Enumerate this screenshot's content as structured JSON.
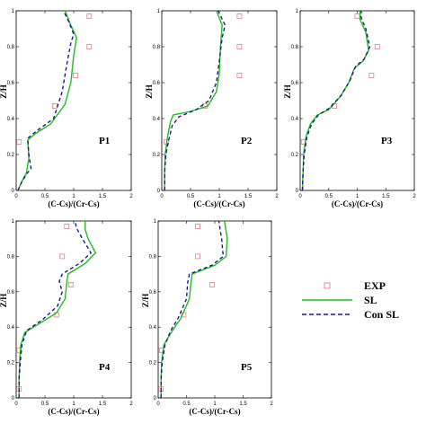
{
  "colors": {
    "exp": "#e08080",
    "sl": "#22bb22",
    "con_sl": "#1a1a8c",
    "axis": "#000000"
  },
  "chart_data": [
    {
      "type": "line",
      "title": "P1",
      "xlabel": "(C-Cs)/(Cr-Cs)",
      "ylabel": "Z/H",
      "xlim": [
        0,
        2
      ],
      "ylim": [
        0,
        1
      ],
      "xticks": [
        "0",
        "0.5",
        "1",
        "1.5",
        "2"
      ],
      "yticks": [
        "0",
        "0.2",
        "0.4",
        "0.6",
        "0.8",
        "1"
      ],
      "series": [
        {
          "name": "EXP",
          "kind": "scatter",
          "points": [
            [
              1.27,
              0.97
            ],
            [
              1.27,
              0.8
            ],
            [
              1.03,
              0.64
            ],
            [
              0.67,
              0.47
            ],
            [
              0.05,
              0.27
            ]
          ]
        },
        {
          "name": "SL",
          "kind": "line",
          "points": [
            [
              0.03,
              0
            ],
            [
              0.1,
              0.05
            ],
            [
              0.18,
              0.1
            ],
            [
              0.22,
              0.18
            ],
            [
              0.2,
              0.28
            ],
            [
              0.35,
              0.32
            ],
            [
              0.6,
              0.37
            ],
            [
              0.85,
              0.48
            ],
            [
              0.95,
              0.6
            ],
            [
              1.0,
              0.75
            ],
            [
              1.05,
              0.85
            ],
            [
              0.95,
              0.92
            ],
            [
              0.85,
              1.0
            ]
          ]
        },
        {
          "name": "Con SL",
          "kind": "dashed",
          "points": [
            [
              0.03,
              0
            ],
            [
              0.1,
              0.05
            ],
            [
              0.2,
              0.1
            ],
            [
              0.26,
              0.12
            ],
            [
              0.22,
              0.2
            ],
            [
              0.2,
              0.29
            ],
            [
              0.35,
              0.33
            ],
            [
              0.65,
              0.4
            ],
            [
              0.8,
              0.55
            ],
            [
              0.88,
              0.7
            ],
            [
              0.95,
              0.82
            ],
            [
              1.0,
              0.87
            ],
            [
              0.9,
              0.95
            ],
            [
              0.82,
              1.0
            ]
          ]
        }
      ]
    },
    {
      "type": "line",
      "title": "P2",
      "xlabel": "(C-Cs)/(Cr-Cs)",
      "ylabel": "Z/H",
      "xlim": [
        0,
        2
      ],
      "ylim": [
        0,
        1
      ],
      "xticks": [
        "0",
        "0.5",
        "1",
        "1.5",
        "2"
      ],
      "yticks": [
        "0",
        "0.2",
        "0.4",
        "0.6",
        "0.8",
        "1"
      ],
      "series": [
        {
          "name": "EXP",
          "kind": "scatter",
          "points": [
            [
              1.35,
              0.97
            ],
            [
              1.35,
              0.8
            ],
            [
              1.35,
              0.64
            ],
            [
              0.75,
              0.47
            ],
            [
              0.08,
              0.27
            ]
          ]
        },
        {
          "name": "SL",
          "kind": "line",
          "points": [
            [
              0.05,
              0
            ],
            [
              0.05,
              0.1
            ],
            [
              0.06,
              0.2
            ],
            [
              0.1,
              0.3
            ],
            [
              0.15,
              0.38
            ],
            [
              0.2,
              0.42
            ],
            [
              0.5,
              0.44
            ],
            [
              0.8,
              0.47
            ],
            [
              0.95,
              0.55
            ],
            [
              1.0,
              0.65
            ],
            [
              1.02,
              0.8
            ],
            [
              1.05,
              0.92
            ],
            [
              0.95,
              1.0
            ]
          ]
        },
        {
          "name": "Con SL",
          "kind": "dashed",
          "points": [
            [
              0.05,
              0
            ],
            [
              0.05,
              0.1
            ],
            [
              0.07,
              0.2
            ],
            [
              0.12,
              0.28
            ],
            [
              0.18,
              0.36
            ],
            [
              0.3,
              0.41
            ],
            [
              0.6,
              0.45
            ],
            [
              0.82,
              0.5
            ],
            [
              0.95,
              0.6
            ],
            [
              1.0,
              0.72
            ],
            [
              1.05,
              0.85
            ],
            [
              1.1,
              0.92
            ],
            [
              0.98,
              1.0
            ]
          ]
        }
      ]
    },
    {
      "type": "line",
      "title": "P3",
      "xlabel": "(C-Cs)/(Cr-Cs)",
      "ylabel": "Z/H",
      "xlim": [
        0,
        2
      ],
      "ylim": [
        0,
        1
      ],
      "xticks": [
        "0",
        "0.5",
        "1",
        "1.5",
        "2"
      ],
      "yticks": [
        "0",
        "0.2",
        "0.4",
        "0.6",
        "0.8",
        "1"
      ],
      "series": [
        {
          "name": "EXP",
          "kind": "scatter",
          "points": [
            [
              1.0,
              0.97
            ],
            [
              1.35,
              0.8
            ],
            [
              1.25,
              0.64
            ],
            [
              0.6,
              0.47
            ],
            [
              0.06,
              0.27
            ]
          ]
        },
        {
          "name": "SL",
          "kind": "line",
          "points": [
            [
              0.04,
              0
            ],
            [
              0.05,
              0.1
            ],
            [
              0.06,
              0.2
            ],
            [
              0.1,
              0.3
            ],
            [
              0.18,
              0.37
            ],
            [
              0.3,
              0.42
            ],
            [
              0.5,
              0.45
            ],
            [
              0.7,
              0.52
            ],
            [
              0.85,
              0.6
            ],
            [
              0.95,
              0.68
            ],
            [
              1.1,
              0.72
            ],
            [
              1.2,
              0.78
            ],
            [
              1.15,
              0.88
            ],
            [
              1.05,
              0.95
            ],
            [
              1.05,
              1.0
            ]
          ]
        },
        {
          "name": "Con SL",
          "kind": "dashed",
          "points": [
            [
              0.04,
              0
            ],
            [
              0.05,
              0.1
            ],
            [
              0.07,
              0.2
            ],
            [
              0.12,
              0.3
            ],
            [
              0.2,
              0.37
            ],
            [
              0.32,
              0.42
            ],
            [
              0.52,
              0.46
            ],
            [
              0.72,
              0.53
            ],
            [
              0.87,
              0.61
            ],
            [
              0.97,
              0.69
            ],
            [
              1.12,
              0.73
            ],
            [
              1.22,
              0.8
            ],
            [
              1.15,
              0.9
            ],
            [
              1.07,
              0.96
            ],
            [
              1.07,
              1.0
            ]
          ]
        }
      ]
    },
    {
      "type": "line",
      "title": "P4",
      "xlabel": "(C-Cs)/(Cr-Cs)",
      "ylabel": "Z/H",
      "xlim": [
        0,
        2
      ],
      "ylim": [
        0,
        1
      ],
      "xticks": [
        "0",
        "0.5",
        "1",
        "1.5",
        "2"
      ],
      "yticks": [
        "0",
        "0.2",
        "0.4",
        "0.6",
        "0.8",
        "1"
      ],
      "series": [
        {
          "name": "EXP",
          "kind": "scatter",
          "points": [
            [
              0.88,
              0.97
            ],
            [
              0.8,
              0.8
            ],
            [
              0.95,
              0.64
            ],
            [
              0.7,
              0.47
            ],
            [
              0.05,
              0.27
            ],
            [
              0.05,
              0.05
            ]
          ]
        },
        {
          "name": "SL",
          "kind": "line",
          "points": [
            [
              0.05,
              0
            ],
            [
              0.05,
              0.1
            ],
            [
              0.06,
              0.2
            ],
            [
              0.08,
              0.3
            ],
            [
              0.15,
              0.37
            ],
            [
              0.4,
              0.42
            ],
            [
              0.7,
              0.48
            ],
            [
              0.85,
              0.56
            ],
            [
              0.88,
              0.65
            ],
            [
              0.9,
              0.7
            ],
            [
              1.2,
              0.76
            ],
            [
              1.38,
              0.82
            ],
            [
              1.25,
              0.9
            ],
            [
              1.2,
              0.95
            ],
            [
              1.2,
              1.0
            ]
          ]
        },
        {
          "name": "Con SL",
          "kind": "dashed",
          "points": [
            [
              0.05,
              0
            ],
            [
              0.05,
              0.1
            ],
            [
              0.07,
              0.2
            ],
            [
              0.1,
              0.3
            ],
            [
              0.18,
              0.38
            ],
            [
              0.45,
              0.44
            ],
            [
              0.72,
              0.52
            ],
            [
              0.8,
              0.6
            ],
            [
              0.75,
              0.66
            ],
            [
              0.8,
              0.7
            ],
            [
              1.1,
              0.76
            ],
            [
              1.3,
              0.82
            ],
            [
              1.15,
              0.9
            ],
            [
              1.05,
              0.96
            ],
            [
              1.02,
              1.0
            ]
          ]
        }
      ]
    },
    {
      "type": "line",
      "title": "P5",
      "xlabel": "(C-Cs)/(Cr-Cs)",
      "ylabel": "Z/H",
      "xlim": [
        0,
        2
      ],
      "ylim": [
        0,
        1
      ],
      "xticks": [
        "0",
        "0.5",
        "1",
        "1.5",
        "2"
      ],
      "yticks": [
        "0",
        "0.2",
        "0.4",
        "0.6",
        "0.8",
        "1"
      ],
      "series": [
        {
          "name": "EXP",
          "kind": "scatter",
          "points": [
            [
              0.7,
              0.97
            ],
            [
              0.7,
              0.8
            ],
            [
              0.95,
              0.64
            ],
            [
              0.45,
              0.47
            ],
            [
              0.06,
              0.27
            ],
            [
              0.05,
              0.05
            ]
          ]
        },
        {
          "name": "SL",
          "kind": "line",
          "points": [
            [
              0.05,
              0
            ],
            [
              0.05,
              0.1
            ],
            [
              0.06,
              0.2
            ],
            [
              0.1,
              0.3
            ],
            [
              0.25,
              0.38
            ],
            [
              0.4,
              0.45
            ],
            [
              0.55,
              0.56
            ],
            [
              0.58,
              0.65
            ],
            [
              0.6,
              0.7
            ],
            [
              1.0,
              0.75
            ],
            [
              1.2,
              0.8
            ],
            [
              1.22,
              0.9
            ],
            [
              1.17,
              1.0
            ]
          ]
        },
        {
          "name": "Con SL",
          "kind": "dashed",
          "points": [
            [
              0.05,
              0
            ],
            [
              0.05,
              0.1
            ],
            [
              0.07,
              0.2
            ],
            [
              0.12,
              0.3
            ],
            [
              0.22,
              0.38
            ],
            [
              0.35,
              0.45
            ],
            [
              0.5,
              0.56
            ],
            [
              0.52,
              0.65
            ],
            [
              0.55,
              0.7
            ],
            [
              0.95,
              0.75
            ],
            [
              1.15,
              0.8
            ],
            [
              1.12,
              0.9
            ],
            [
              1.07,
              1.0
            ]
          ]
        }
      ]
    }
  ],
  "legend": {
    "placement": "right",
    "items": [
      {
        "label": "EXP",
        "kind": "scatter"
      },
      {
        "label": "SL",
        "kind": "line"
      },
      {
        "label": "Con SL",
        "kind": "dashed"
      }
    ]
  }
}
